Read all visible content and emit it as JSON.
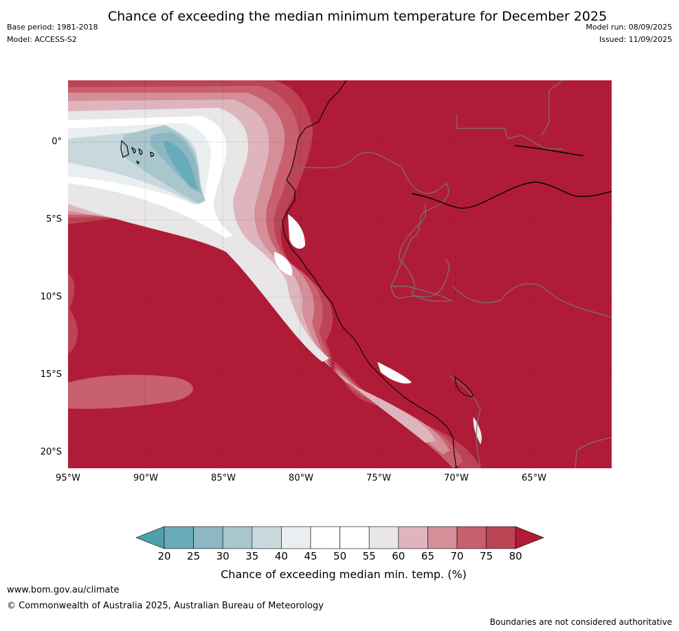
{
  "title": "Chance of exceeding the median minimum temperature for December 2025",
  "meta": {
    "base_period": "Base period: 1981-2018",
    "model": "Model: ACCESS-S2",
    "model_run": "Model run: 08/09/2025",
    "issued": "Issued: 11/09/2025"
  },
  "map": {
    "lat_labels": [
      "0°",
      "5°S",
      "10°S",
      "15°S",
      "20°S"
    ],
    "lon_labels": [
      "95°W",
      "90°W",
      "85°W",
      "80°W",
      "75°W",
      "70°W",
      "65°W"
    ]
  },
  "colorbar": {
    "ticks": [
      "20",
      "25",
      "30",
      "35",
      "40",
      "45",
      "50",
      "55",
      "60",
      "65",
      "70",
      "75",
      "80"
    ],
    "title": "Chance of exceeding median min. temp. (%)",
    "colors": [
      "#4fa0af",
      "#69acb9",
      "#8db7c3",
      "#a9c6cd",
      "#c8d8dc",
      "#e9eff1",
      "#ffffff",
      "#ffffff",
      "#e8e6e7",
      "#dfb5bd",
      "#d48f99",
      "#c8606e",
      "#bc4455",
      "#b01c37"
    ]
  },
  "footer": {
    "website": "www.bom.gov.au/climate",
    "copyright": "© Commonwealth of Australia 2025, Australian Bureau of Meteorology",
    "disclaimer": "Boundaries are not considered authoritative"
  }
}
